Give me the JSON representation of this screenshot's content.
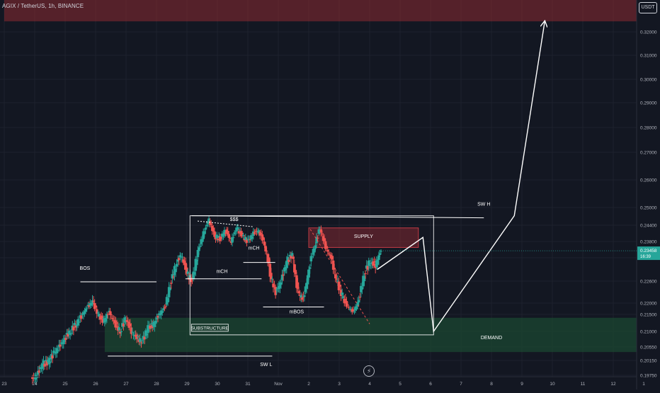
{
  "header": {
    "symbol_title": "AGIX / TetherUS, 1h, BINANCE",
    "currency_button": "USDT"
  },
  "price_badge": {
    "price": "0.23458",
    "countdown": "16:39",
    "color": "#26a69a"
  },
  "replay": {
    "icon": "lightning-icon",
    "glyph": "⚡"
  },
  "colors": {
    "up": "#26a69a",
    "down": "#ef5350",
    "supply": "#8c2a31",
    "demand": "#1b4732",
    "annotation": "#ffffff"
  },
  "chart_data": {
    "type": "candlestick",
    "y_axis": {
      "ticks": [
        "0.32000",
        "0.31000",
        "0.30000",
        "0.29000",
        "0.28000",
        "0.27000",
        "0.26000",
        "0.25000",
        "0.24400",
        "0.23800",
        "0.23200",
        "0.22600",
        "0.22000",
        "0.21500",
        "0.21000",
        "0.20550",
        "0.20150",
        "0.19750"
      ],
      "tick_values": [
        0.32,
        0.31,
        0.3,
        0.29,
        0.28,
        0.27,
        0.26,
        0.25,
        0.244,
        0.238,
        0.232,
        0.226,
        0.22,
        0.215,
        0.21,
        0.2055,
        0.2015,
        0.1975
      ]
    },
    "x_axis": {
      "ticks": [
        "23",
        "24",
        "25",
        "26",
        "27",
        "28",
        "29",
        "30",
        "31",
        "Nov",
        "2",
        "3",
        "4",
        "5",
        "6",
        "7",
        "8",
        "9",
        "10",
        "11",
        "12",
        "1"
      ],
      "tick_days": [
        23,
        24,
        25,
        26,
        27,
        28,
        29,
        30,
        31,
        32,
        33,
        34,
        35,
        36,
        37,
        38,
        39,
        40,
        41,
        42,
        43,
        44
      ]
    },
    "candles": {
      "start_day": 24.0,
      "end_day": 35.3,
      "closes": [
        0.1975,
        0.2005,
        0.201,
        0.2035,
        0.2055,
        0.208,
        0.21,
        0.212,
        0.2145,
        0.218,
        0.2205,
        0.215,
        0.213,
        0.216,
        0.2125,
        0.21,
        0.214,
        0.21,
        0.208,
        0.207,
        0.211,
        0.212,
        0.215,
        0.218,
        0.225,
        0.23,
        0.233,
        0.228,
        0.226,
        0.234,
        0.241,
        0.246,
        0.24,
        0.239,
        0.242,
        0.238,
        0.243,
        0.24,
        0.238,
        0.241,
        0.242,
        0.237,
        0.228,
        0.223,
        0.226,
        0.231,
        0.233,
        0.223,
        0.221,
        0.229,
        0.236,
        0.243,
        0.236,
        0.232,
        0.226,
        0.222,
        0.2185,
        0.216,
        0.221,
        0.228,
        0.231,
        0.23,
        0.2346
      ],
      "last": 0.23458
    },
    "zones": [
      {
        "label": "",
        "kind": "supply",
        "x1": 23.0,
        "x2": 44.0,
        "y1": 0.3245,
        "y2": 0.3365
      },
      {
        "label": "SUPPLY",
        "kind": "supply",
        "x1": 33.0,
        "x2": 36.6,
        "y1": 0.2358,
        "y2": 0.243
      },
      {
        "label": "DEMAND",
        "kind": "demand",
        "x1": 26.3,
        "x2": 44.0,
        "y1": 0.204,
        "y2": 0.214
      }
    ],
    "annotations": [
      {
        "label": "$$$",
        "day": 30.55,
        "price": 0.2455
      },
      {
        "label": "mCH",
        "day": 31.2,
        "price": 0.235
      },
      {
        "label": "mCH",
        "day": 30.15,
        "price": 0.2281
      },
      {
        "label": "BOS",
        "day": 25.65,
        "price": 0.2289
      },
      {
        "label": "mBOS",
        "day": 32.6,
        "price": 0.2155
      },
      {
        "label": "SW H",
        "day": 38.75,
        "price": 0.2507
      },
      {
        "label": "SW L",
        "day": 31.6,
        "price": 0.2
      },
      {
        "label": "DEMAND",
        "day": 39.0,
        "price": 0.2078
      }
    ],
    "substructure": {
      "label": "SUBSTRUCTURE",
      "x1": 29.1,
      "x2": 37.1,
      "y1": 0.209,
      "y2": 0.2472
    },
    "projection": [
      [
        35.25,
        0.229
      ],
      [
        36.75,
        0.2395
      ],
      [
        37.1,
        0.21
      ],
      [
        39.75,
        0.2472
      ],
      [
        40.75,
        0.3245
      ]
    ]
  }
}
